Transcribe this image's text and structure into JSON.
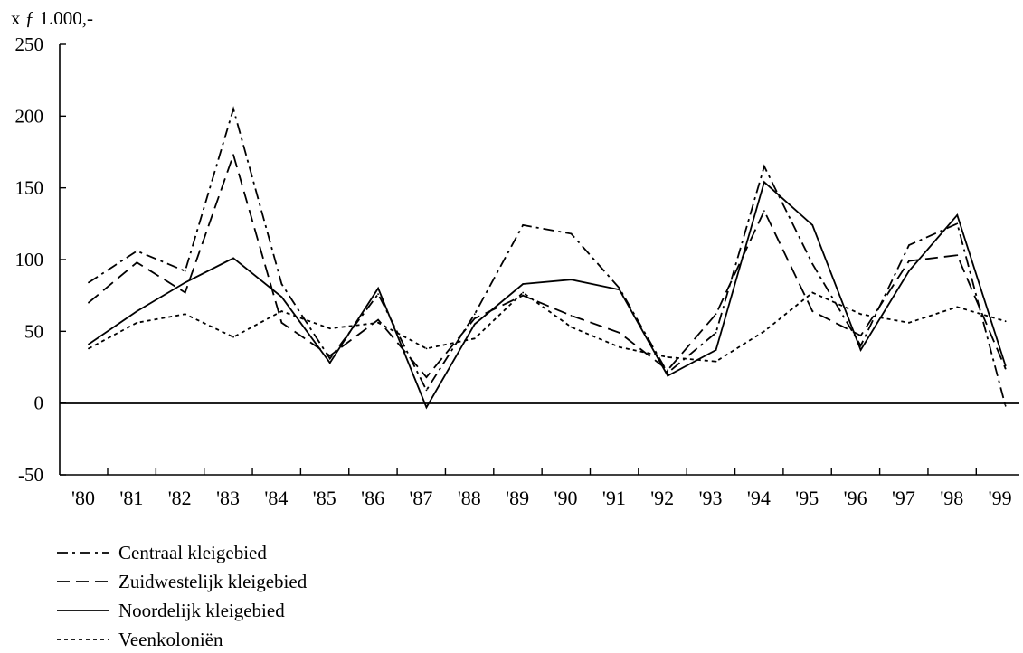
{
  "chart_data": {
    "type": "line",
    "unit_label": "x ƒ 1.000,-",
    "categories": [
      "'80",
      "'81",
      "'82",
      "'83",
      "'84",
      "'85",
      "'86",
      "'87",
      "'88",
      "'89",
      "'90",
      "'91",
      "'92",
      "'93",
      "'94",
      "'95",
      "'96",
      "'97",
      "'98",
      "'99"
    ],
    "y_ticks": [
      "250",
      "200",
      "150",
      "100",
      "50",
      "0",
      "-50"
    ],
    "ylim": [
      -50,
      250
    ],
    "grid": false,
    "legend_position": "bottom-left",
    "series": [
      {
        "name": "Centraal kleigebied",
        "dash": "dash-dot",
        "color": "#000000",
        "values": [
          84,
          106,
          92,
          205,
          83,
          31,
          76,
          9,
          62,
          124,
          118,
          80,
          21,
          49,
          165,
          97,
          40,
          110,
          125,
          -2
        ]
      },
      {
        "name": "Zuidwestelijk kleigebied",
        "dash": "dashed",
        "color": "#000000",
        "values": [
          70,
          98,
          77,
          173,
          56,
          33,
          58,
          18,
          59,
          75,
          61,
          49,
          23,
          62,
          134,
          64,
          47,
          99,
          103,
          24
        ]
      },
      {
        "name": "Noordelijk kleigebied",
        "dash": "solid",
        "color": "#000000",
        "values": [
          41,
          64,
          84,
          101,
          74,
          28,
          80,
          -3,
          55,
          83,
          86,
          79,
          19,
          37,
          154,
          124,
          37,
          92,
          131,
          26
        ]
      },
      {
        "name": "Veenkoloniën",
        "dash": "dotted",
        "color": "#000000",
        "values": [
          38,
          56,
          62,
          46,
          64,
          52,
          56,
          38,
          45,
          77,
          53,
          39,
          32,
          29,
          50,
          77,
          62,
          56,
          67,
          57
        ]
      }
    ]
  }
}
